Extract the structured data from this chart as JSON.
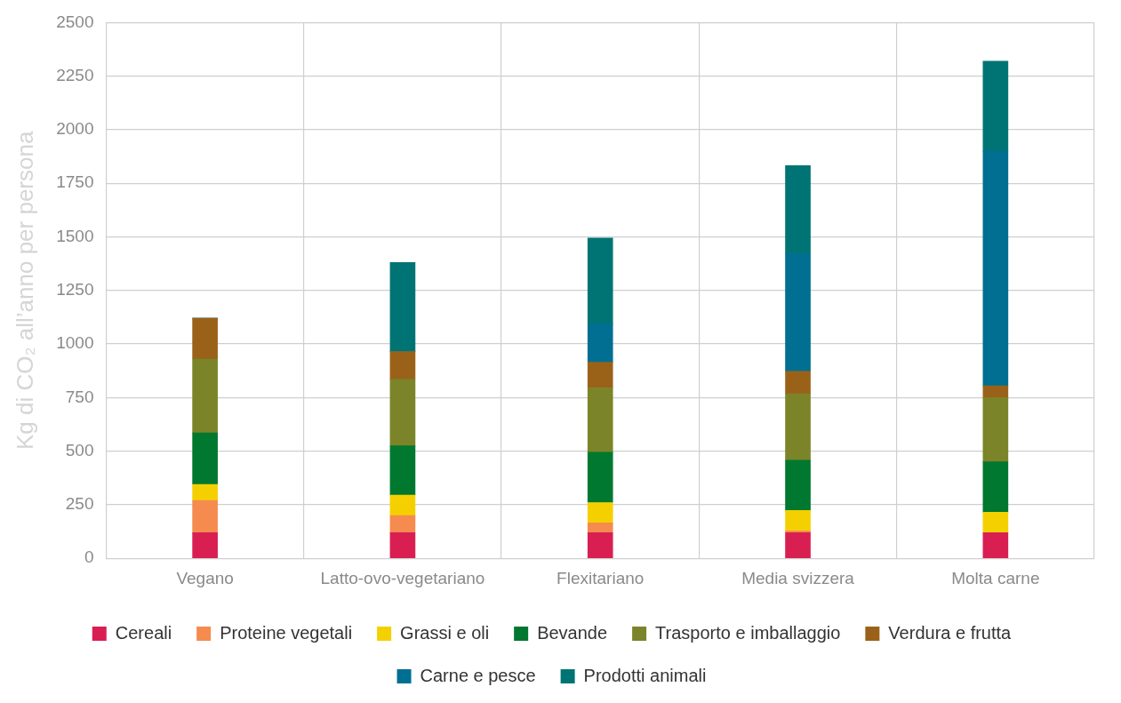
{
  "chart_data": {
    "type": "bar",
    "stacked": true,
    "ylabel": "Kg di CO₂ all’anno per persona",
    "categories": [
      "Vegano",
      "Latto-ovo-vegetariano",
      "Flexitariano",
      "Media svizzera",
      "Molta carne"
    ],
    "series": [
      {
        "name": "Cereali",
        "color": "#d91f52",
        "values": [
          120,
          120,
          120,
          120,
          120
        ]
      },
      {
        "name": "Proteine vegetali",
        "color": "#f58b4f",
        "values": [
          150,
          80,
          45,
          8,
          0
        ]
      },
      {
        "name": "Grassi e oli",
        "color": "#f5d000",
        "values": [
          75,
          95,
          95,
          95,
          95
        ]
      },
      {
        "name": "Bevande",
        "color": "#00782f",
        "values": [
          240,
          230,
          235,
          235,
          235
        ]
      },
      {
        "name": "Trasporto e imballaggio",
        "color": "#7b8428",
        "values": [
          345,
          310,
          300,
          310,
          300
        ]
      },
      {
        "name": "Verdura e frutta",
        "color": "#9a6219",
        "values": [
          190,
          130,
          120,
          105,
          55
        ]
      },
      {
        "name": "Carne e pesce",
        "color": "#006f91",
        "values": [
          0,
          0,
          180,
          550,
          1095
        ]
      },
      {
        "name": "Prodotti animali",
        "color": "#007474",
        "values": [
          0,
          415,
          400,
          410,
          420
        ]
      }
    ],
    "ylim": [
      0,
      2500
    ],
    "yticks": [
      0,
      250,
      500,
      750,
      1000,
      1250,
      1500,
      1750,
      2000,
      2250,
      2500
    ],
    "grid": true,
    "legend": "bottom"
  }
}
